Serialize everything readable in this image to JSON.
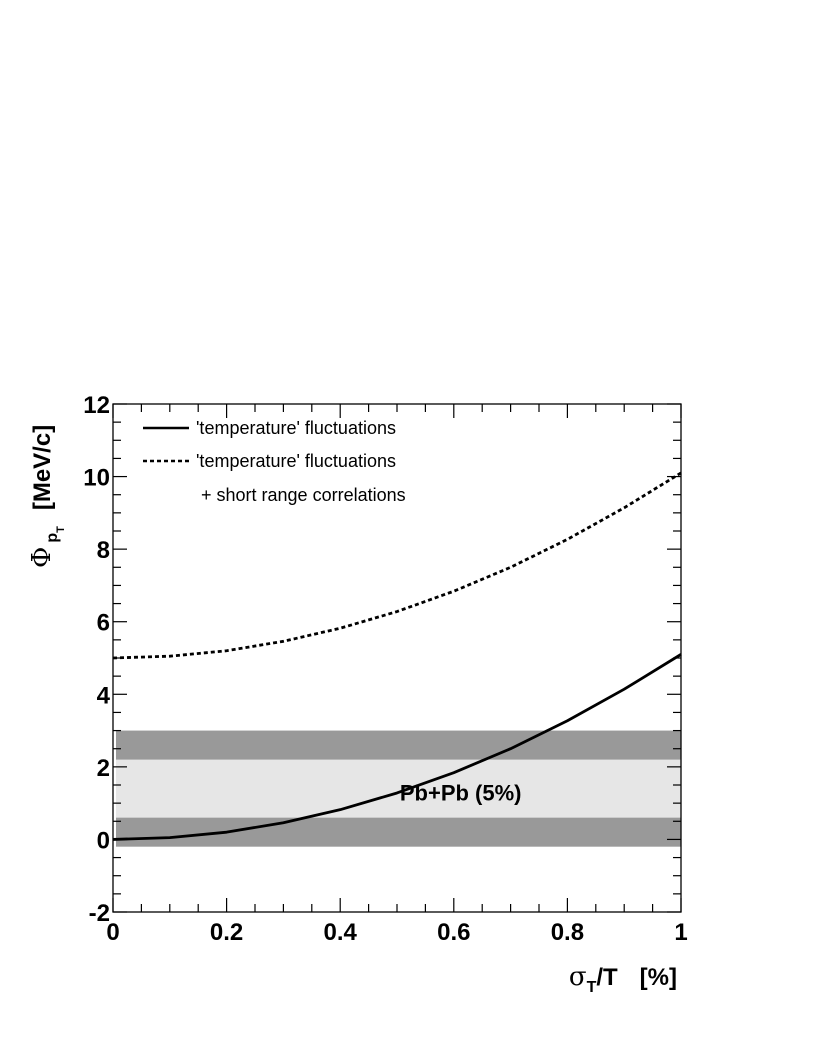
{
  "chart_data": {
    "type": "line",
    "xlim": [
      0,
      1
    ],
    "ylim": [
      -2,
      12
    ],
    "x_ticks": [
      "0",
      "0.2",
      "0.4",
      "0.6",
      "0.8",
      "1"
    ],
    "y_ticks": [
      "-2",
      "0",
      "2",
      "4",
      "6",
      "8",
      "10",
      "12"
    ],
    "xlabel": {
      "symbol": "σ",
      "sub": "T",
      "rest": "/T",
      "unit": "[%]"
    },
    "ylabel": {
      "symbol": "Φ",
      "sub": "p",
      "subsub": "T",
      "unit": "[MeV/c]"
    },
    "series": [
      {
        "name": "'temperature' fluctuations",
        "style": "solid",
        "color": "#000000",
        "x": [
          0.0,
          0.1,
          0.2,
          0.3,
          0.4,
          0.5,
          0.6,
          0.7,
          0.8,
          0.9,
          1.0
        ],
        "y": [
          0.0,
          0.05,
          0.2,
          0.46,
          0.82,
          1.28,
          1.84,
          2.5,
          3.27,
          4.14,
          5.1
        ]
      },
      {
        "name": "'temperature' fluctuations",
        "name_line2": "+ short range correlations",
        "style": "dashed",
        "color": "#000000",
        "x": [
          0.0,
          0.1,
          0.2,
          0.3,
          0.4,
          0.5,
          0.6,
          0.7,
          0.8,
          0.9,
          1.0
        ],
        "y": [
          5.0,
          5.05,
          5.2,
          5.46,
          5.82,
          6.28,
          6.84,
          7.5,
          8.27,
          9.14,
          10.1
        ]
      }
    ],
    "bands": [
      {
        "name": "outer",
        "y_from": -0.2,
        "y_to": 3.0,
        "color": "#999999"
      },
      {
        "name": "inner",
        "y_from": 0.6,
        "y_to": 2.2,
        "color": "#e6e6e6"
      }
    ],
    "annotation": {
      "text": "Pb+Pb (5%)",
      "x": 0.66,
      "y": 1.3
    },
    "legend_placement": "top-left",
    "grid": false
  }
}
